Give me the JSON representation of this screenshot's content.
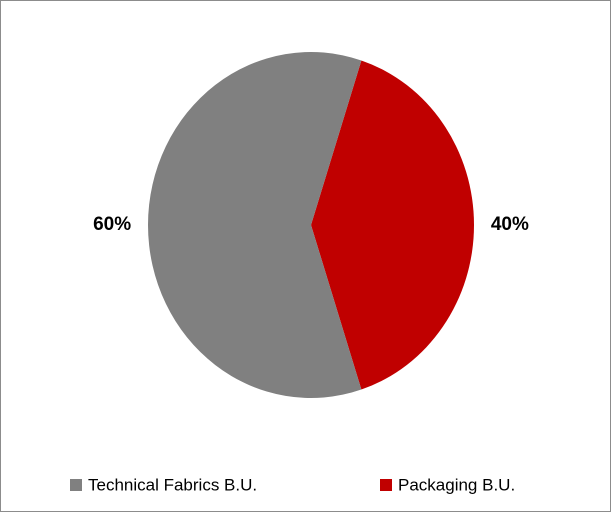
{
  "chart_data": {
    "type": "pie",
    "categories": [
      "Technical Fabrics B.U.",
      "Packaging B.U."
    ],
    "values": [
      60,
      40
    ],
    "value_labels": [
      "60%",
      "40%"
    ],
    "colors": [
      "#808080",
      "#c00000"
    ],
    "legend": "bottom"
  }
}
